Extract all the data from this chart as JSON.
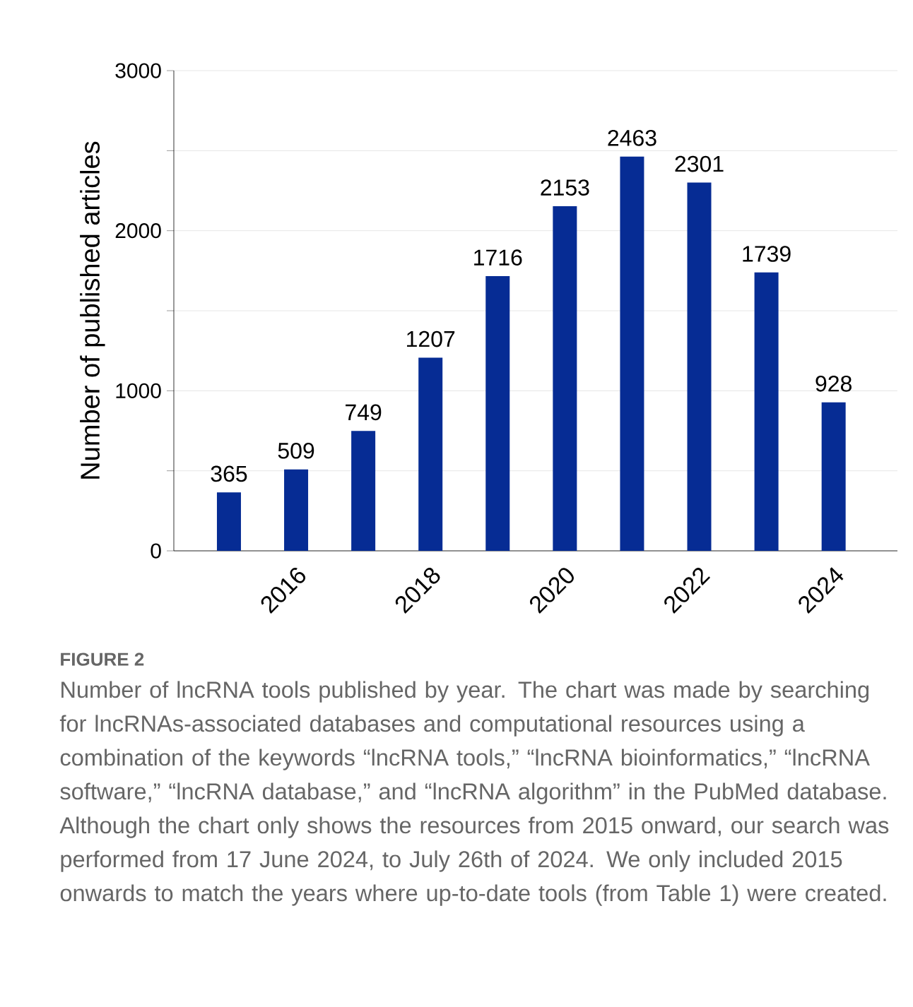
{
  "chart_data": {
    "type": "bar",
    "ylabel": "Number of published articles",
    "categories": [
      null,
      "2016",
      null,
      "2018",
      null,
      "2020",
      null,
      "2022",
      null,
      "2024"
    ],
    "values": [
      365,
      509,
      749,
      1207,
      1716,
      2153,
      2463,
      2301,
      1739,
      928
    ],
    "color": "#062c94",
    "data_labels": true,
    "grid": "y",
    "ylim": [
      0,
      3000
    ],
    "yticks": [
      0,
      {
        "value": 500,
        "label": null
      },
      1000,
      {
        "value": 1500,
        "label": null
      },
      2000,
      {
        "value": 2500,
        "label": null
      },
      3000
    ],
    "annotations": [
      "FIGURE 2",
      "Number of lncRNA tools published by year. The chart was made by searching for lncRNAs-associated databases and computational resources using a combination of the keywords “lncRNA tools,” “lncRNA bioinformatics,” “lncRNA software,” “lncRNA database,” and “lncRNA algorithm” in the PubMed database. Although the chart only shows the resources from 2015 onward, our search was performed from 17 June 2024, to July 26th of 2024. We only included 2015 onwards to match the years where up-to-date tools (from Table 1) were created."
    ]
  }
}
